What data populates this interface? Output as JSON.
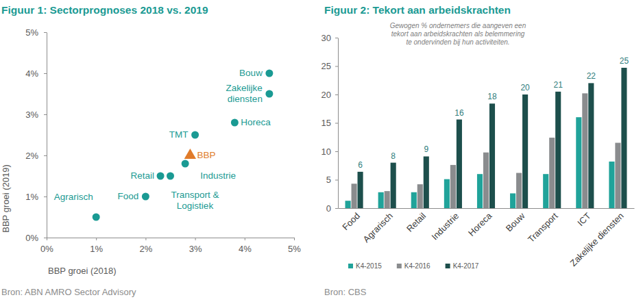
{
  "chart_data": [
    {
      "type": "scatter",
      "title": "Figuur 1: Sectorprognoses 2018 vs. 2019",
      "x_label": "BBP groei (2018)",
      "y_label": "BBP groei (2019)",
      "annotations": [
        "Bron: ABN AMRO Sector Advisory"
      ],
      "xlim": [
        0,
        5
      ],
      "ylim": [
        0,
        5
      ],
      "xticks": [
        {
          "value": 0,
          "label": "0%"
        },
        {
          "value": 1,
          "label": "1%"
        },
        {
          "value": 2,
          "label": "2%"
        },
        {
          "value": 3,
          "label": "3%"
        },
        {
          "value": 4,
          "label": "4%"
        },
        {
          "value": 5,
          "label": "5%"
        }
      ],
      "yticks": [
        {
          "value": 0,
          "label": "0%"
        },
        {
          "value": 1,
          "label": "1%"
        },
        {
          "value": 2,
          "label": "2%"
        },
        {
          "value": 3,
          "label": "3%"
        },
        {
          "value": 4,
          "label": "4%"
        },
        {
          "value": 5,
          "label": "5%"
        }
      ],
      "grid": false,
      "series": [
        {
          "color": "#1a9a93",
          "marker": "circle",
          "labels": [
            "Bouw",
            "Zakelijke\ndiensten",
            "Horeca",
            "TMT",
            "Industrie",
            "Retail",
            "Transport &\nLogistiek",
            "Food",
            "Agrarisch"
          ],
          "x": [
            4.5,
            4.5,
            3.8,
            3.0,
            2.8,
            2.3,
            2.5,
            2.0,
            1.0
          ],
          "values": [
            4.0,
            3.5,
            2.8,
            2.5,
            1.8,
            1.5,
            1.5,
            1.0,
            0.5
          ]
        },
        {
          "color": "#e07b2a",
          "marker": "triangle",
          "labels": [
            "BBP"
          ],
          "x": [
            2.9
          ],
          "values": [
            2.0
          ]
        }
      ]
    },
    {
      "type": "bar",
      "title": "Figuur 2: Tekort aan arbeidskrachten",
      "subtitle": "Gewogen % ondernemers die aangeven een\ntekort aan arbeidskrachten als belemmering\nte ondervinden bij hun activiteiten.",
      "annotations": [
        "Bron: CBS"
      ],
      "categories": [
        "Food",
        "Agrarisch",
        "Retail",
        "Industrie",
        "Horeca",
        "Bouw",
        "Transport",
        "ICT",
        "Zakelijke diensten"
      ],
      "ylim": [
        0,
        30
      ],
      "yticks": [
        0,
        5,
        10,
        15,
        20,
        25,
        30
      ],
      "grid": false,
      "legend": "bottom",
      "series": [
        {
          "name": "K4-2015",
          "color": "#20a39a",
          "values": [
            1.3,
            2.8,
            2.8,
            5.1,
            6.0,
            2.6,
            6.0,
            16.0,
            8.2
          ]
        },
        {
          "name": "K4-2016",
          "color": "#8a8c8e",
          "values": [
            4.3,
            3.0,
            4.2,
            7.6,
            9.8,
            6.2,
            12.4,
            20.2,
            11.5
          ]
        },
        {
          "name": "K4-2017",
          "color": "#1d4f4c",
          "values": [
            6.4,
            8.0,
            9.1,
            15.6,
            18.4,
            20.0,
            20.5,
            22.0,
            24.7
          ],
          "data_labels": true,
          "value_labels": [
            "6",
            "8",
            "9",
            "16",
            "18",
            "20",
            "21",
            "22",
            "25"
          ]
        }
      ]
    }
  ]
}
